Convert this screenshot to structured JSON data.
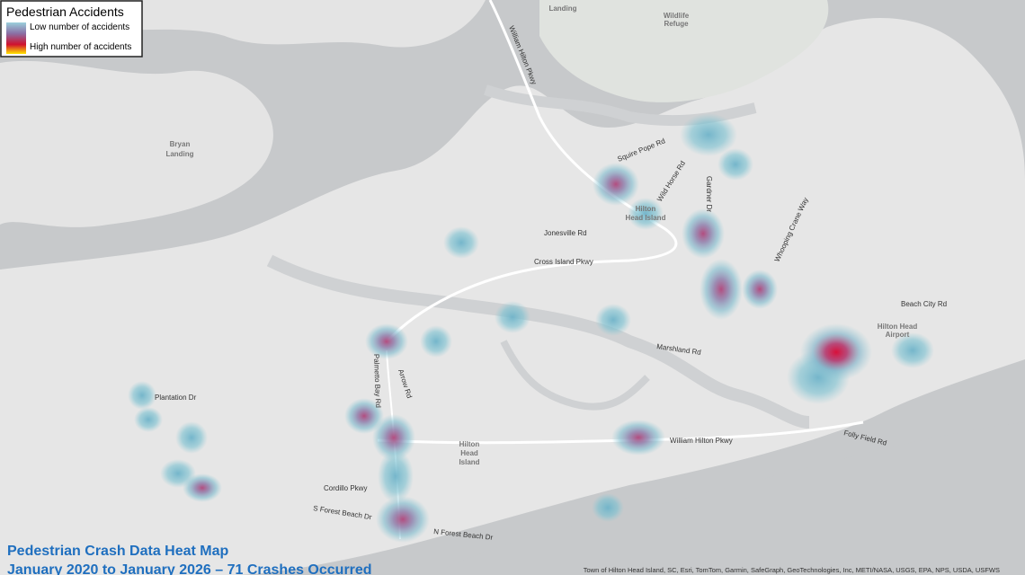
{
  "legend": {
    "title": "Pedestrian Accidents",
    "low": "Low number of accidents",
    "high": "High number of accidents"
  },
  "title": "Pedestrian Crash Data Heat Map",
  "subtitle": "January 2020 to January 2026 – 71 Crashes Occurred",
  "attribution": "Town of Hilton Head Island, SC, Esri, TomTom, Garmin, SafeGraph, GeoTechnologies, Inc, METI/NASA, USGS, EPA, NPS, USDA, USFWS",
  "labels": [
    "William Hilton Pkwy",
    "Squire Pope Rd",
    "Wild Horse Rd",
    "Gardner Dr",
    "Hilton",
    "Head Island",
    "Jonesville Rd",
    "Cross Island Pkwy",
    "Whooping Crane Way",
    "Beach City Rd",
    "Hilton Head",
    "Airport",
    "Marshland Rd",
    "Bryan",
    "Landing",
    "Plantation Dr",
    "Palmetto Bay Rd",
    "Arrow Rd",
    "Hilton",
    "Head",
    "Island",
    "William Hilton Pkwy",
    "Folly Field Rd",
    "Cordillo Pkwy",
    "S Forest Beach Dr",
    "N Forest Beach Dr",
    "Landing",
    "Wildlife",
    "Refuge"
  ]
}
